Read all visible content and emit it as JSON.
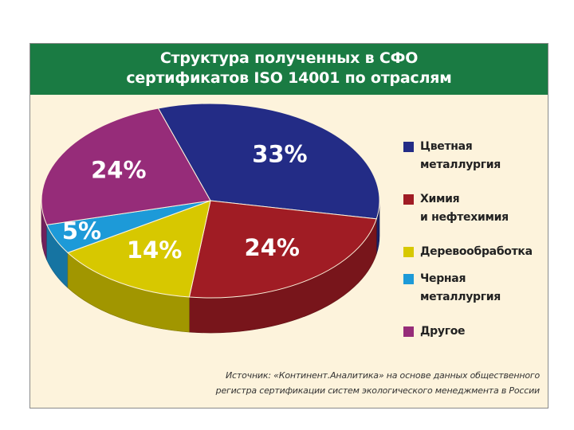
{
  "chart_data": {
    "type": "pie",
    "title": "Структура полученных в СФО\nсертификатов ISO 14001 по отраслям",
    "title_lines": [
      "Структура полученных в СФО",
      "сертификатов ISO 14001 по отраслям"
    ],
    "style": "3d",
    "legend_position": "right",
    "slices": [
      {
        "label": "Цветная\nметаллургия",
        "value": 33,
        "value_label": "33%",
        "color": "#232c86"
      },
      {
        "label": "Химия\nи нефтехимия",
        "value": 24,
        "value_label": "24%",
        "color": "#a01c24"
      },
      {
        "label": "Деревообработка",
        "value": 14,
        "value_label": "14%",
        "color": "#d7c800"
      },
      {
        "label": "Черная\nметаллургия",
        "value": 5,
        "value_label": "5%",
        "color": "#1d9ad8"
      },
      {
        "label": "Другое",
        "value": 24,
        "value_label": "24%",
        "color": "#962c79"
      }
    ]
  },
  "colors": {
    "header_bg": "#1a7b43",
    "panel_bg": "#fdf3dc"
  },
  "source": {
    "line1": "Источник: «Континент.Аналитика» на основе данных общественного",
    "line2": "регистра сертификации систем экологического менеджмента в России"
  }
}
